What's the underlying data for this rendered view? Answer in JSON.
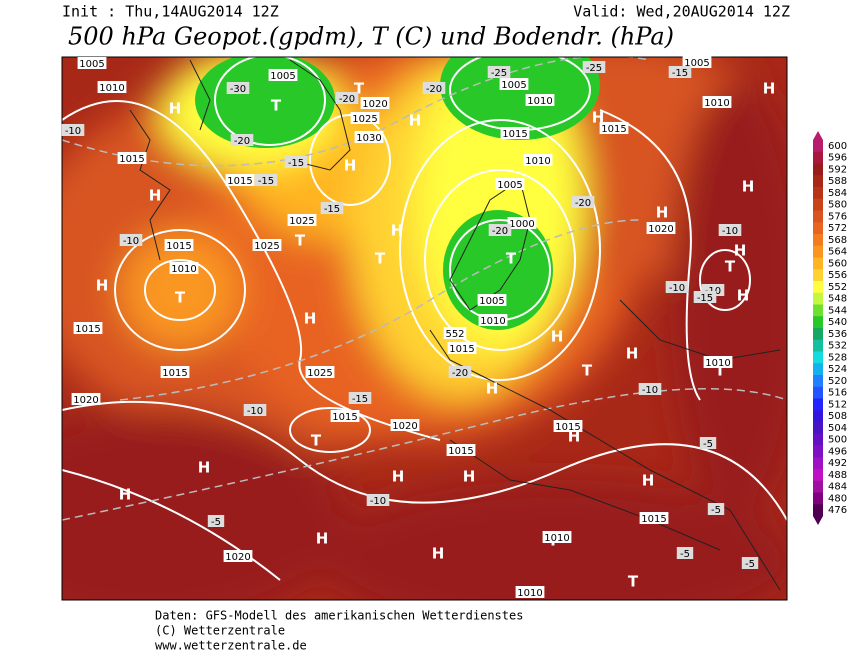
{
  "header": {
    "init": "Init : Thu,14AUG2014 12Z",
    "valid": "Valid: Wed,20AUG2014 12Z",
    "title": "500 hPa Geopot.(gpdm), T (C) und Bodendr. (hPa)"
  },
  "colorbar": {
    "ticks": [
      600,
      596,
      592,
      588,
      584,
      580,
      576,
      572,
      568,
      564,
      560,
      556,
      552,
      548,
      544,
      540,
      536,
      532,
      528,
      524,
      520,
      516,
      512,
      508,
      504,
      500,
      496,
      492,
      488,
      484,
      480,
      476
    ],
    "colors": [
      "#b81c6c",
      "#a8183c",
      "#981c1c",
      "#a82818",
      "#b83418",
      "#c84418",
      "#d85420",
      "#e86420",
      "#f47c20",
      "#fa9620",
      "#ffb424",
      "#ffd230",
      "#ffff40",
      "#c4f840",
      "#70e030",
      "#28c828",
      "#14a860",
      "#14c0a0",
      "#14dcdc",
      "#14b0f0",
      "#2080ff",
      "#2454ff",
      "#2424ff",
      "#3414e0",
      "#4814c4",
      "#6410c4",
      "#8010c4",
      "#a010c4",
      "#c010c4",
      "#a010a0",
      "#800080",
      "#500050"
    ]
  },
  "map": {
    "labels": [
      "H",
      "H",
      "H",
      "H",
      "H",
      "H",
      "H",
      "H",
      "H",
      "H",
      "H",
      "H",
      "H",
      "H",
      "H",
      "H",
      "H",
      "H",
      "H",
      "H",
      "H",
      "H",
      "H",
      "H",
      "T",
      "T",
      "T",
      "T",
      "T",
      "T",
      "T",
      "T",
      "T",
      "T",
      "T",
      "T",
      "1005",
      "1010",
      "1005",
      "1020",
      "1025",
      "1030",
      "1015",
      "1015",
      "1025",
      "1025",
      "1015",
      "1010",
      "1015",
      "1015",
      "1025",
      "1020",
      "1015",
      "1020",
      "1015",
      "1005",
      "1010",
      "1015",
      "1010",
      "1005",
      "1000",
      "1005",
      "1010",
      "1015",
      "1015",
      "1010",
      "1005",
      "1020",
      "1010",
      "1015",
      "1015",
      "1010",
      "1010",
      "1020",
      "552",
      "-10",
      "-10",
      "-30",
      "-20",
      "-15",
      "-15",
      "-20",
      "-15",
      "-20",
      "-25",
      "-15",
      "-20",
      "-20",
      "-10",
      "-10",
      "-10",
      "-15",
      "-20",
      "-15",
      "-10",
      "-10",
      "-5",
      "-10",
      "-5",
      "-5",
      "-5",
      "-5",
      "-25"
    ]
  },
  "footer": {
    "line1": "Daten: GFS-Modell des amerikanischen Wetterdienstes",
    "line2": "(C) Wetterzentrale",
    "line3": "www.wetterzentrale.de"
  }
}
